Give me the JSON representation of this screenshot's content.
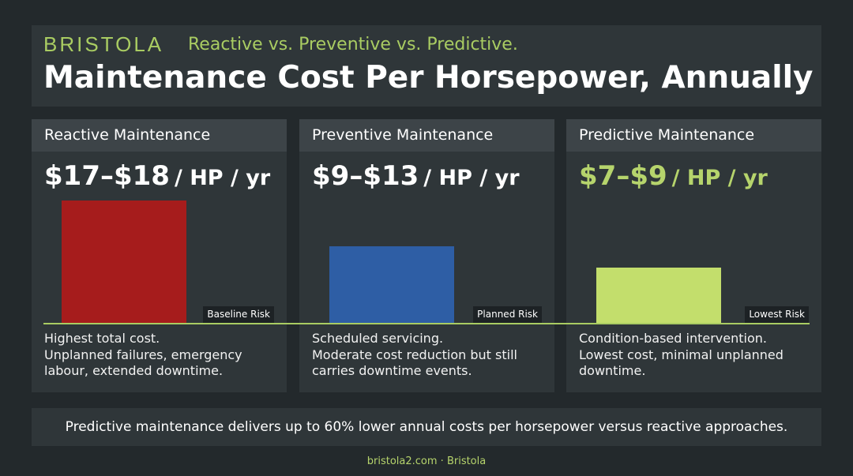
{
  "header": {
    "brand": "BRISTOLA",
    "subtitle": "Reactive vs. Preventive vs. Predictive.",
    "title": "Maintenance Cost Per Horsepower, Annually"
  },
  "chart_data": {
    "type": "bar",
    "title": "Maintenance Cost Per Horsepower, Annually",
    "subtitle": "Reactive vs. Preventive vs. Predictive.",
    "unit": "/ HP / yr",
    "categories": [
      "Reactive Maintenance",
      "Preventive Maintenance",
      "Predictive Maintenance"
    ],
    "ranges": [
      "$17–$18",
      "$9–$13",
      "$7–$9"
    ],
    "values": [
      17.5,
      11,
      8
    ],
    "ylim": [
      0,
      17.5
    ],
    "colors": [
      "#a61c1c",
      "#2e5ea5",
      "#c3de6c"
    ],
    "risk_labels": [
      "Baseline Risk",
      "Planned Risk",
      "Lowest Risk"
    ],
    "descriptions": [
      [
        "Highest total cost.",
        "Unplanned failures, emergency",
        "labour, extended downtime."
      ],
      [
        "Scheduled servicing.",
        "Moderate cost reduction but still",
        "carries downtime events."
      ],
      [
        "Condition-based intervention.",
        "Lowest cost, minimal unplanned",
        "downtime."
      ]
    ],
    "highlight_color": "#b6d46c"
  },
  "footer": {
    "summary": "Predictive maintenance delivers up to 60% lower annual costs per horsepower versus reactive approaches.",
    "credit": "bristola2.com · Bristola"
  }
}
